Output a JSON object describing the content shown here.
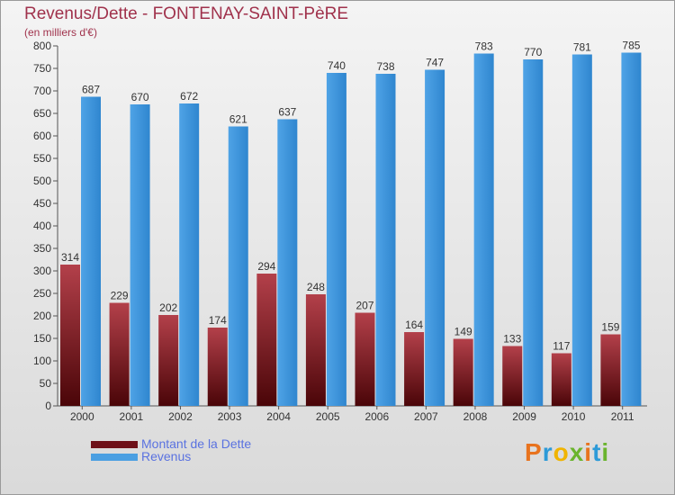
{
  "header": {
    "title": "Revenus/Dette - FONTENAY-SAINT-PèRE",
    "subtitle": "(en milliers d'€)"
  },
  "chart_data": {
    "type": "bar",
    "categories": [
      "2000",
      "2001",
      "2002",
      "2003",
      "2004",
      "2005",
      "2006",
      "2007",
      "2008",
      "2009",
      "2010",
      "2011"
    ],
    "series": [
      {
        "name": "Montant de la Dette",
        "values": [
          314,
          229,
          202,
          174,
          294,
          248,
          207,
          164,
          149,
          133,
          117,
          159
        ],
        "color": "#6e1018"
      },
      {
        "name": "Revenus",
        "values": [
          687,
          670,
          672,
          621,
          637,
          740,
          738,
          747,
          783,
          770,
          781,
          785
        ],
        "color": "#4a9fe2"
      }
    ],
    "ylim": [
      0,
      800
    ],
    "yticks": [
      0,
      50,
      100,
      150,
      200,
      250,
      300,
      350,
      400,
      450,
      500,
      550,
      600,
      650,
      700,
      750,
      800
    ],
    "grid": false,
    "legend": "bottom-left"
  },
  "logo": {
    "letters": [
      "P",
      "r",
      "o",
      "x",
      "i",
      "t",
      "i"
    ],
    "colors": [
      "#e8731e",
      "#2c9ad8",
      "#f0b400",
      "#6ab42d",
      "#e8731e",
      "#2c9ad8",
      "#6ab42d"
    ]
  }
}
